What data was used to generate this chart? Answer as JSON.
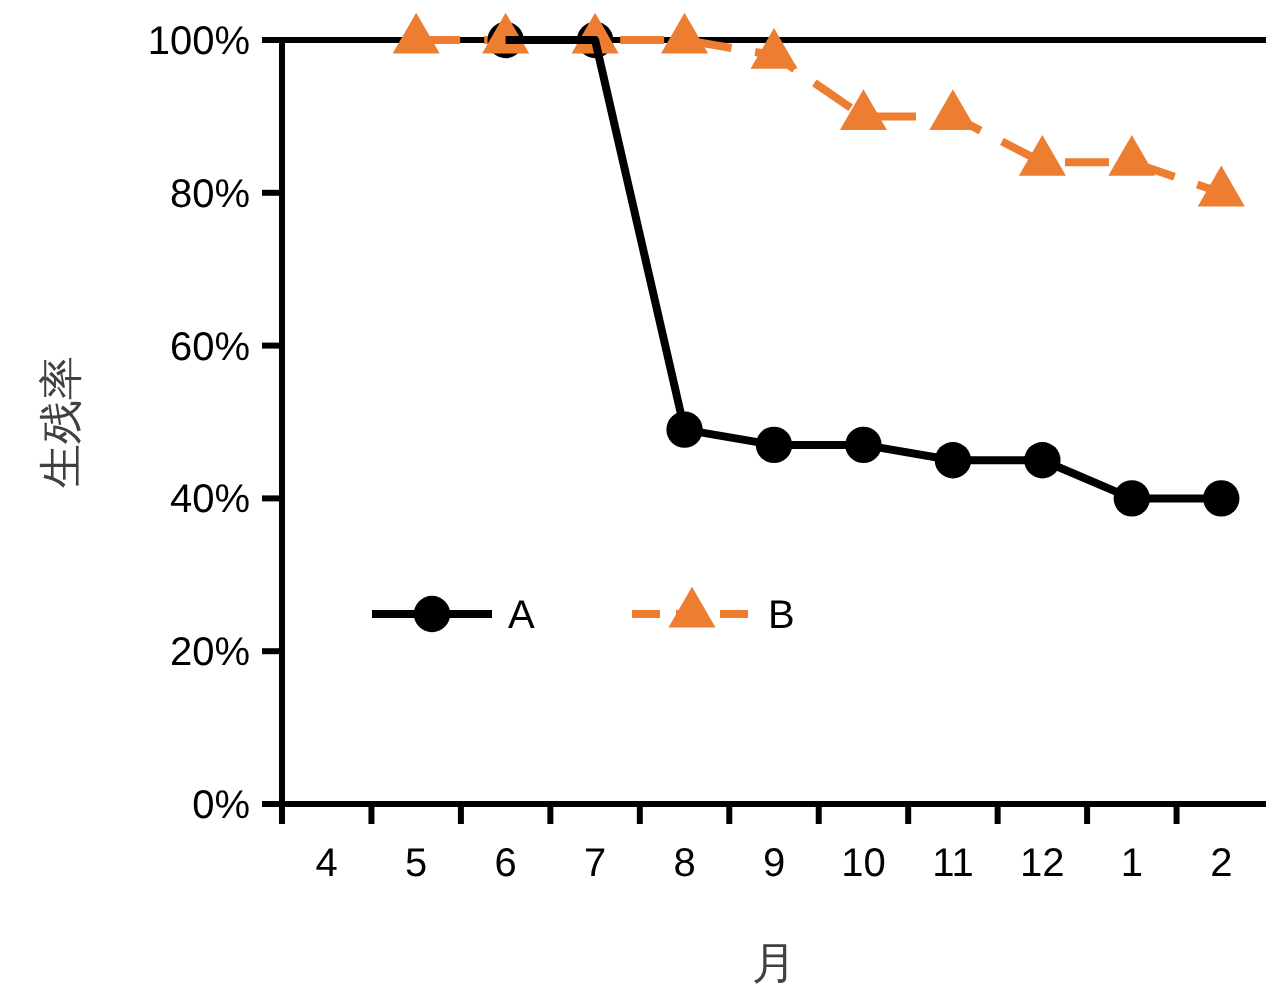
{
  "chart_data": {
    "type": "line",
    "xlabel": "月",
    "ylabel": "生残率",
    "categories": [
      "4",
      "5",
      "6",
      "7",
      "8",
      "9",
      "10",
      "11",
      "12",
      "1",
      "2"
    ],
    "ylim": [
      0,
      100
    ],
    "yticks": [
      {
        "value": 0,
        "label": "0%"
      },
      {
        "value": 20,
        "label": "20%"
      },
      {
        "value": 40,
        "label": "40%"
      },
      {
        "value": 60,
        "label": "60%"
      },
      {
        "value": 80,
        "label": "80%"
      },
      {
        "value": 100,
        "label": "100%"
      }
    ],
    "series": [
      {
        "name": "A",
        "color": "#000000",
        "marker": "circle",
        "line_style": "solid",
        "values": [
          null,
          null,
          100,
          100,
          49,
          47,
          47,
          45,
          45,
          40,
          40
        ]
      },
      {
        "name": "B",
        "color": "#ed7d31",
        "marker": "triangle",
        "line_style": "dashed",
        "values": [
          null,
          100,
          100,
          100,
          100,
          98,
          90,
          90,
          84,
          84,
          80
        ]
      }
    ],
    "grid": false,
    "legend": "bottom left"
  }
}
